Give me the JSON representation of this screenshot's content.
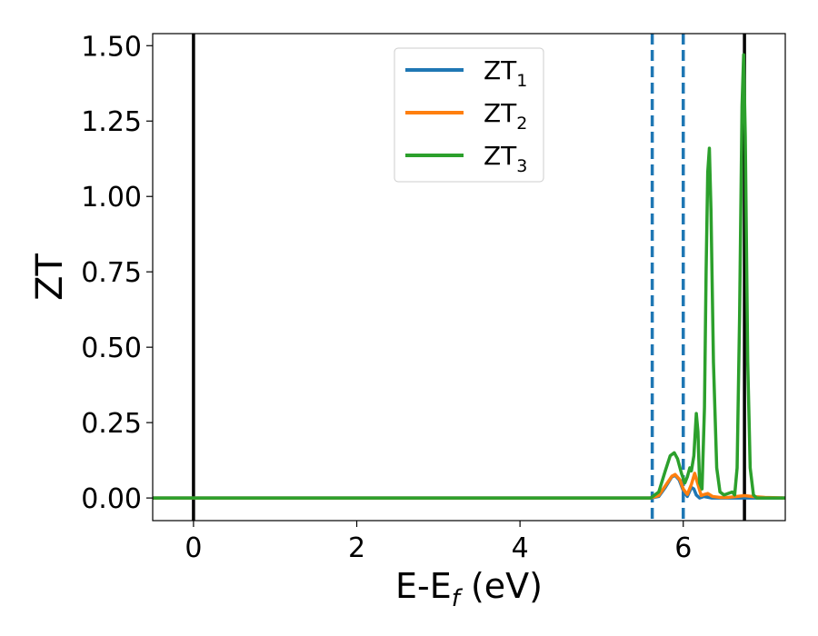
{
  "chart_data": {
    "type": "line",
    "title": "",
    "xlabel": "E-E",
    "xlabel_sub": "f",
    "xlabel_unit": " (eV)",
    "ylabel": "ZT",
    "xlim": [
      -0.5,
      7.25
    ],
    "ylim": [
      -0.075,
      1.54
    ],
    "xticks": [
      0,
      2,
      4,
      6
    ],
    "xtick_labels": [
      "0",
      "2",
      "4",
      "6"
    ],
    "yticks": [
      0.0,
      0.25,
      0.5,
      0.75,
      1.0,
      1.25,
      1.5
    ],
    "ytick_labels": [
      "0.00",
      "0.25",
      "0.50",
      "0.75",
      "1.00",
      "1.25",
      "1.50"
    ],
    "legend_position": "upper center",
    "grid": false,
    "vlines": [
      {
        "x": 0.0,
        "style": "solid",
        "color": "#000000"
      },
      {
        "x": 6.75,
        "style": "solid",
        "color": "#000000"
      },
      {
        "x": 5.62,
        "style": "dashed",
        "color": "#1f77b4"
      },
      {
        "x": 6.0,
        "style": "dashed",
        "color": "#1f77b4"
      }
    ],
    "series": [
      {
        "name": "ZT",
        "subscript": "1",
        "color": "#1f77b4",
        "x": [
          -0.5,
          5.6,
          5.7,
          5.78,
          5.86,
          5.9,
          5.95,
          6.0,
          6.05,
          6.1,
          6.13,
          6.16,
          6.2,
          6.25,
          6.35,
          6.5,
          6.6,
          6.7,
          6.8,
          6.9,
          7.0,
          7.25
        ],
        "y": [
          0.0,
          0.0,
          0.005,
          0.035,
          0.07,
          0.075,
          0.06,
          0.025,
          0.005,
          0.035,
          0.03,
          0.01,
          0.0,
          0.005,
          0.0,
          0.0,
          0.0,
          0.0,
          0.0,
          0.0,
          0.0,
          0.0
        ]
      },
      {
        "name": "ZT",
        "subscript": "2",
        "color": "#ff7f0e",
        "x": [
          -0.5,
          5.6,
          5.7,
          5.78,
          5.86,
          5.9,
          5.96,
          6.0,
          6.05,
          6.1,
          6.14,
          6.18,
          6.22,
          6.26,
          6.3,
          6.36,
          6.45,
          6.55,
          6.65,
          6.75,
          6.85,
          7.0,
          7.25
        ],
        "y": [
          0.0,
          0.0,
          0.008,
          0.04,
          0.072,
          0.078,
          0.06,
          0.03,
          0.012,
          0.045,
          0.082,
          0.045,
          0.008,
          0.012,
          0.015,
          0.005,
          0.002,
          0.002,
          0.005,
          0.008,
          0.005,
          0.002,
          0.0
        ]
      },
      {
        "name": "ZT",
        "subscript": "3",
        "color": "#2ca02c",
        "x": [
          -0.5,
          5.6,
          5.7,
          5.78,
          5.84,
          5.89,
          5.93,
          5.98,
          6.02,
          6.05,
          6.08,
          6.1,
          6.13,
          6.16,
          6.18,
          6.2,
          6.23,
          6.26,
          6.28,
          6.3,
          6.32,
          6.34,
          6.37,
          6.41,
          6.45,
          6.5,
          6.55,
          6.6,
          6.63,
          6.66,
          6.69,
          6.72,
          6.74,
          6.76,
          6.79,
          6.82,
          6.86,
          6.9,
          7.0,
          7.25
        ],
        "y": [
          0.0,
          0.0,
          0.02,
          0.09,
          0.14,
          0.15,
          0.13,
          0.08,
          0.05,
          0.07,
          0.1,
          0.09,
          0.14,
          0.28,
          0.22,
          0.05,
          0.03,
          0.3,
          0.75,
          1.08,
          1.16,
          0.95,
          0.45,
          0.1,
          0.02,
          0.01,
          0.015,
          0.02,
          0.01,
          0.1,
          0.6,
          1.3,
          1.47,
          1.2,
          0.45,
          0.1,
          0.01,
          0.0,
          0.0,
          0.0
        ]
      }
    ]
  }
}
